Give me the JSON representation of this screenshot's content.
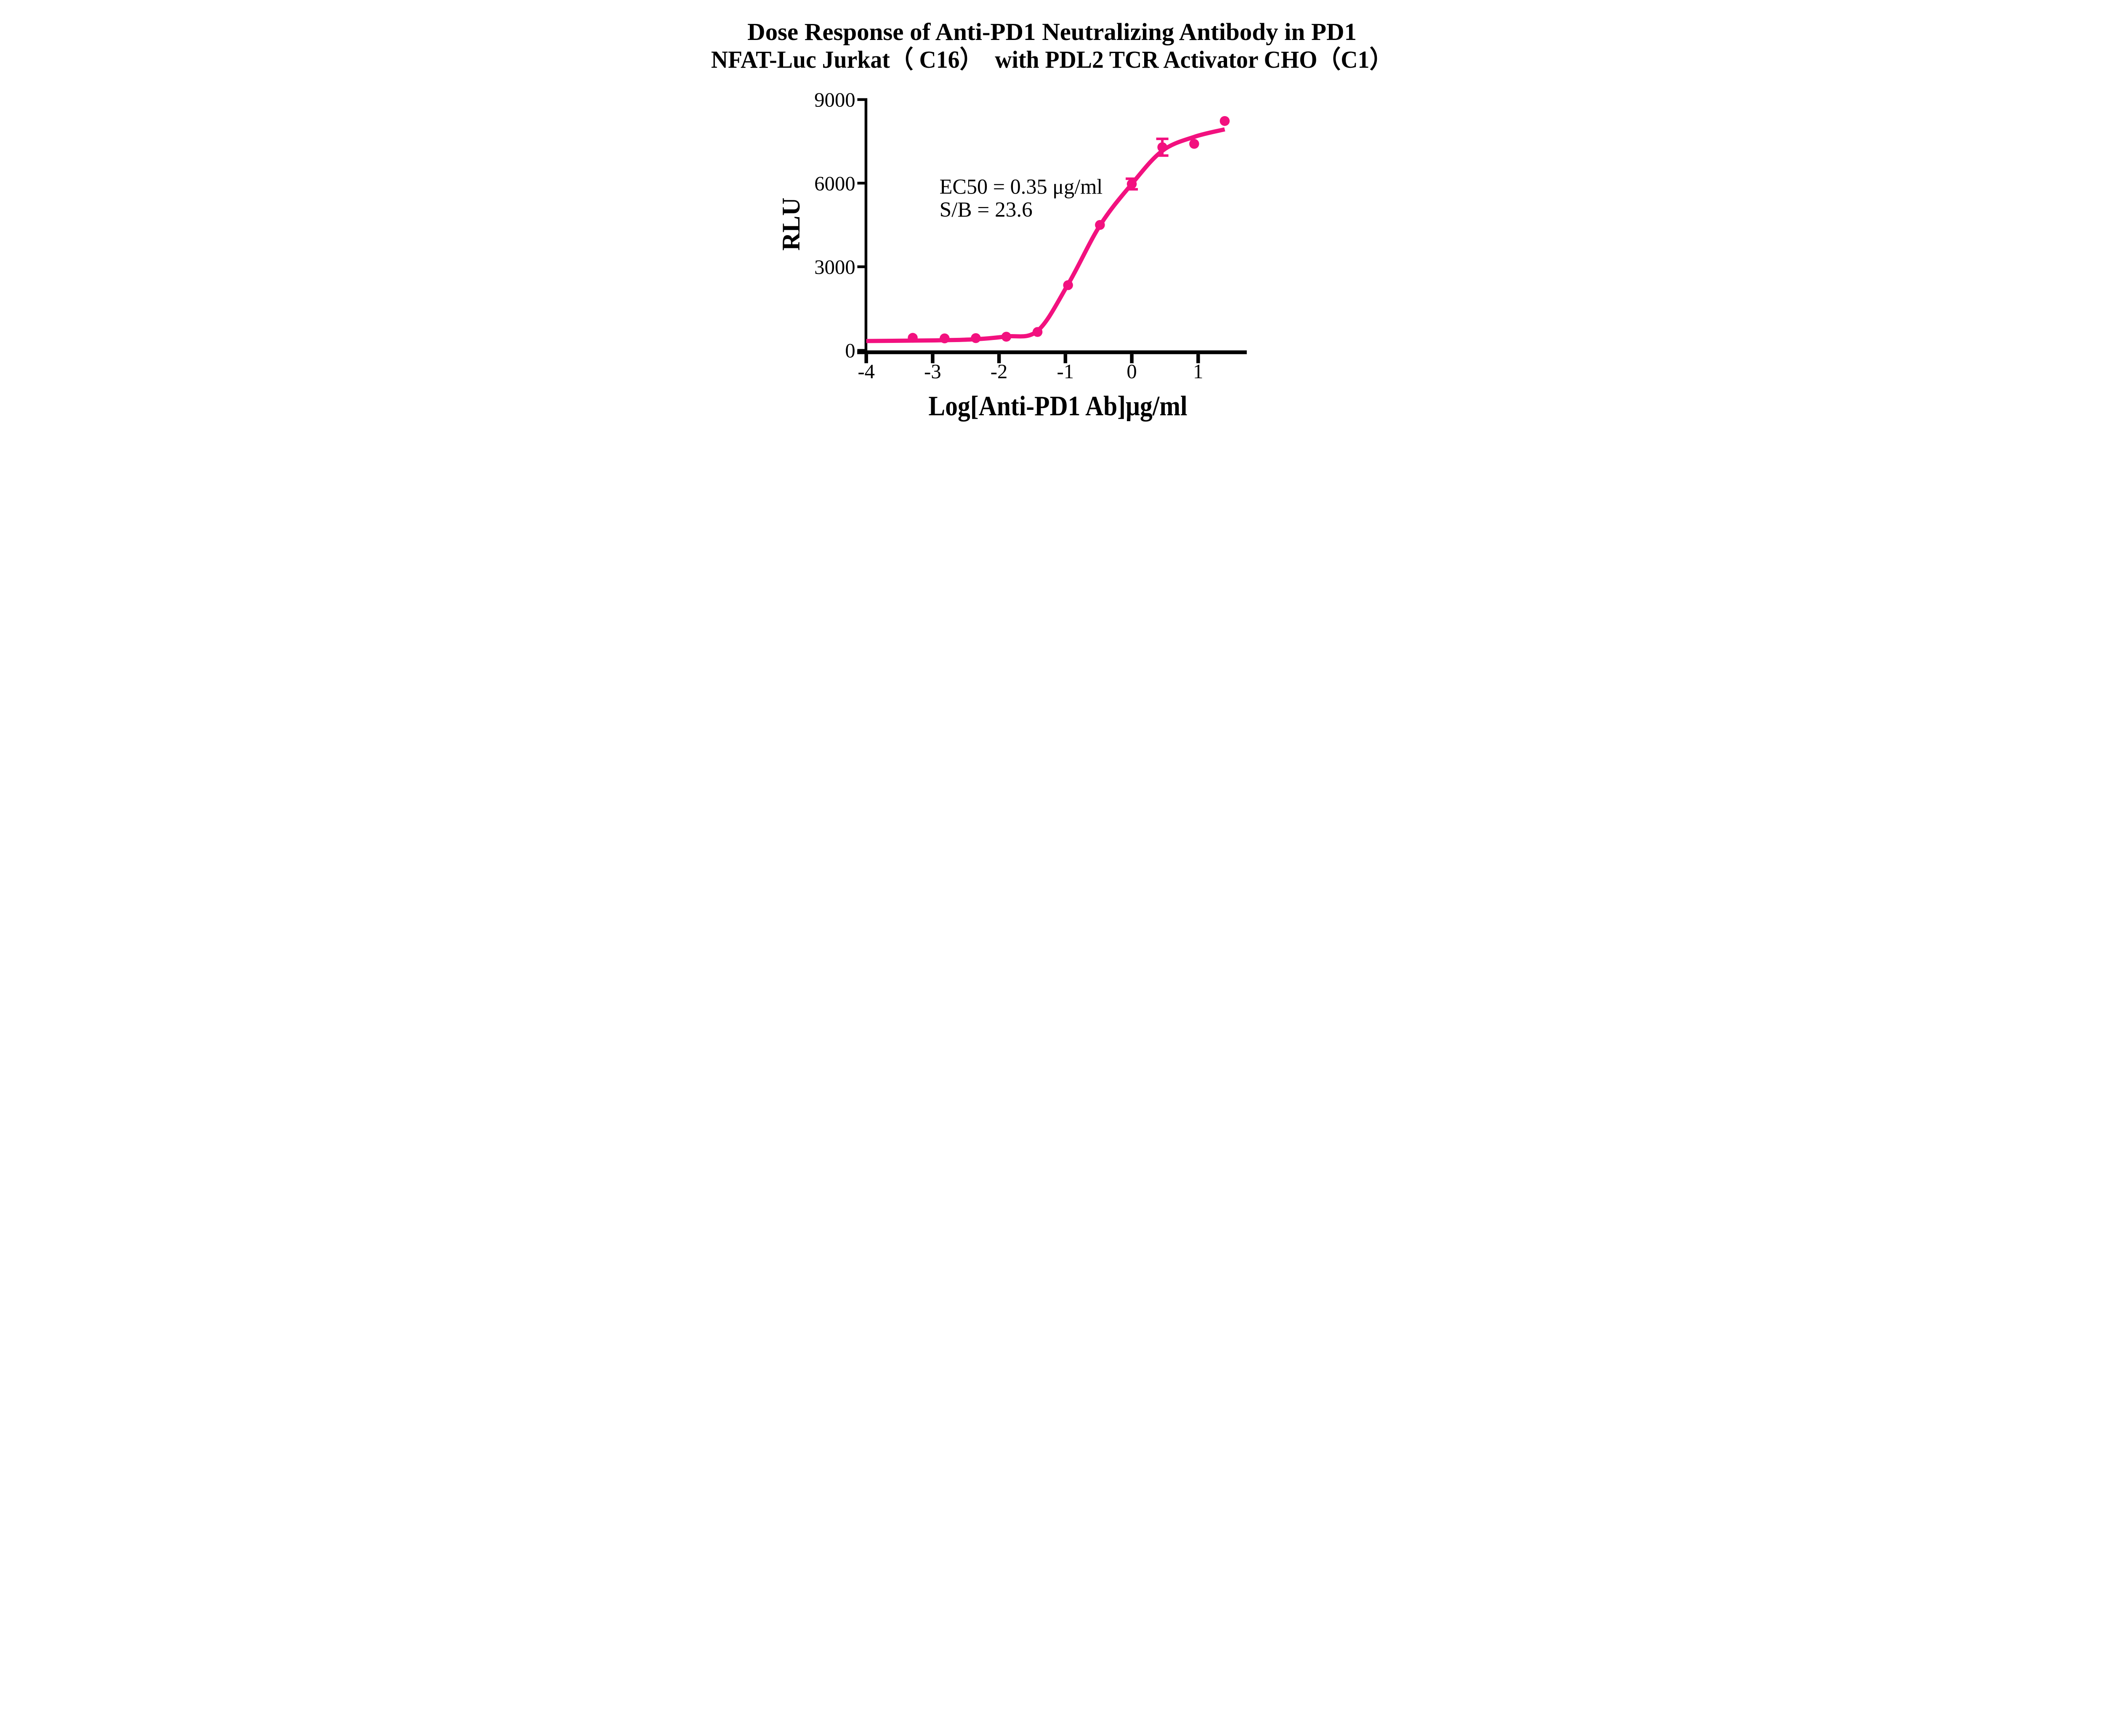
{
  "title": {
    "line1": "Dose Response of Anti-PD1 Neutralizing Antibody in PD1",
    "line2": "NFAT-Luc Jurkat（ C16）  with PDL2 TCR Activator CHO（C1）"
  },
  "annotation": {
    "ec50_line": "EC50 = 0.35 μg/ml",
    "sb_line": "S/B = 23.6"
  },
  "axes": {
    "x_label": "Log[Anti-PD1 Ab]μg/ml",
    "y_label": "RLU",
    "x_tick_labels": [
      "-4",
      "-3",
      "-2",
      "-1",
      "0",
      "1"
    ],
    "y_tick_labels": [
      "0",
      "3000",
      "6000",
      "9000"
    ]
  },
  "chart_data": {
    "type": "scatter",
    "title": "Dose Response of Anti-PD1 Neutralizing Antibody in PD1 NFAT-Luc Jurkat（C16） with PDL2 TCR Activator CHO（C1）",
    "xlabel": "Log[Anti-PD1 Ab]μg/ml",
    "ylabel": "RLU",
    "xlim": [
      -4,
      1.75
    ],
    "ylim": [
      0,
      9000
    ],
    "x_ticks": [
      -4,
      -3,
      -2,
      -1,
      0,
      1
    ],
    "y_ticks": [
      0,
      3000,
      6000,
      9000
    ],
    "grid": false,
    "legend_position": "none",
    "marker_color": "#F2117F",
    "curve_color": "#F2117F",
    "axis_color": "#000000",
    "ec50_ug_ml": 0.35,
    "s_over_b": 23.6,
    "series": [
      {
        "name": "Anti-PD1 Ab",
        "x": [
          -3.3,
          -2.82,
          -2.35,
          -1.89,
          -1.42,
          -0.96,
          -0.48,
          0.0,
          0.46,
          0.94,
          1.4
        ],
        "y": [
          450,
          430,
          440,
          490,
          660,
          2340,
          4500,
          5970,
          7290,
          7410,
          8230
        ],
        "yerr": [
          0,
          0,
          0,
          0,
          0,
          0,
          0,
          190,
          300,
          0,
          0
        ]
      }
    ],
    "fit_curve": {
      "model": "sigmoidal dose-response",
      "x": [
        -4.0,
        -3.3,
        -2.82,
        -2.35,
        -1.89,
        -1.42,
        -0.96,
        -0.48,
        0.0,
        0.46,
        0.94,
        1.4
      ],
      "y": [
        335,
        350,
        365,
        400,
        500,
        700,
        2370,
        4480,
        5970,
        7160,
        7660,
        7930
      ]
    }
  }
}
